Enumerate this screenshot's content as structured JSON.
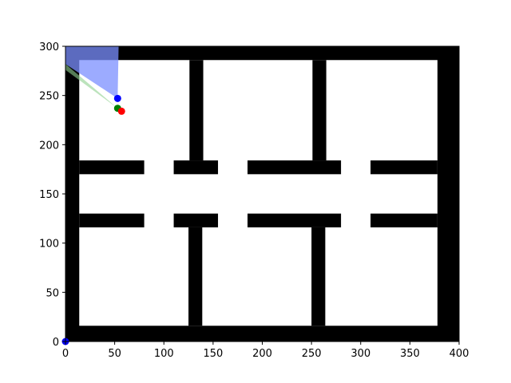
{
  "chart_data": {
    "type": "scatter",
    "title": "",
    "xlabel": "",
    "ylabel": "",
    "xlim": [
      0,
      400
    ],
    "ylim": [
      0,
      300
    ],
    "xticks": [
      0,
      50,
      100,
      150,
      200,
      250,
      300,
      350,
      400
    ],
    "yticks": [
      0,
      50,
      100,
      150,
      200,
      250,
      300
    ],
    "grid": false,
    "legend": "none",
    "colors": {
      "wall": "#000000",
      "blue_point": "#0000ff",
      "green_point": "#008000",
      "red_point": "#ff0000",
      "blue_cone": "#7b8fff",
      "green_cone": "#8fd08f"
    },
    "walls": [
      {
        "x0": 0,
        "x1": 14,
        "y0": 0,
        "y1": 300
      },
      {
        "x0": 378,
        "x1": 400,
        "y0": 0,
        "y1": 300
      },
      {
        "x0": 0,
        "x1": 400,
        "y0": 286,
        "y1": 300
      },
      {
        "x0": 0,
        "x1": 400,
        "y0": 0,
        "y1": 16
      },
      {
        "x0": 14,
        "x1": 80,
        "y0": 170,
        "y1": 184
      },
      {
        "x0": 110,
        "x1": 155,
        "y0": 170,
        "y1": 184
      },
      {
        "x0": 185,
        "x1": 280,
        "y0": 170,
        "y1": 184
      },
      {
        "x0": 310,
        "x1": 378,
        "y0": 170,
        "y1": 184
      },
      {
        "x0": 14,
        "x1": 80,
        "y0": 116,
        "y1": 130
      },
      {
        "x0": 110,
        "x1": 155,
        "y0": 116,
        "y1": 130
      },
      {
        "x0": 185,
        "x1": 280,
        "y0": 116,
        "y1": 130
      },
      {
        "x0": 310,
        "x1": 378,
        "y0": 116,
        "y1": 130
      },
      {
        "x0": 126,
        "x1": 140,
        "y0": 184,
        "y1": 286
      },
      {
        "x0": 251,
        "x1": 265,
        "y0": 184,
        "y1": 286
      },
      {
        "x0": 125,
        "x1": 139,
        "y0": 16,
        "y1": 116
      },
      {
        "x0": 250,
        "x1": 264,
        "y0": 16,
        "y1": 116
      }
    ],
    "cones": [
      {
        "name_color": "blue_cone",
        "opacity": 0.75,
        "points": [
          [
            53,
            247
          ],
          [
            54,
            300
          ],
          [
            0,
            300
          ],
          [
            0,
            282
          ]
        ]
      },
      {
        "name_color": "green_cone",
        "opacity": 0.6,
        "points": [
          [
            53,
            237
          ],
          [
            0,
            276
          ],
          [
            0,
            282
          ]
        ]
      }
    ],
    "points": [
      {
        "x": 53,
        "y": 247,
        "color": "blue_point"
      },
      {
        "x": 53,
        "y": 237,
        "color": "green_point"
      },
      {
        "x": 57,
        "y": 234,
        "color": "red_point"
      },
      {
        "x": 0,
        "y": 0,
        "color": "blue_point"
      }
    ]
  }
}
